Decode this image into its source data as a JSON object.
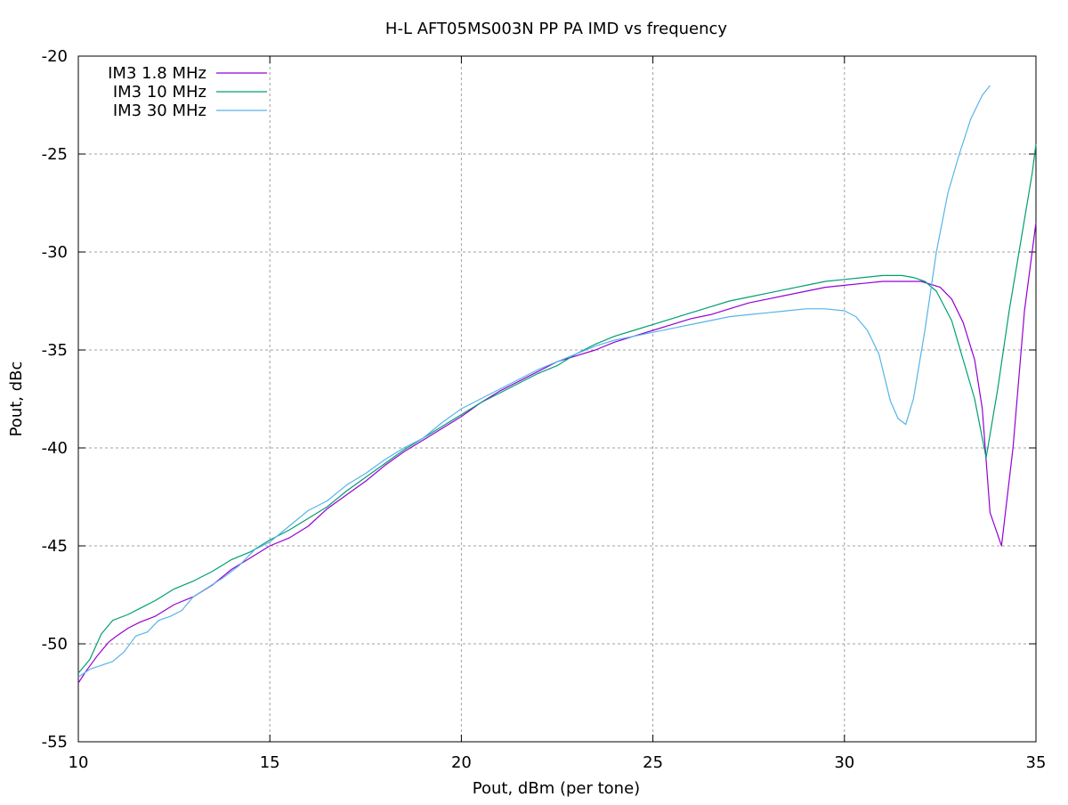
{
  "chart_data": {
    "type": "line",
    "title": "H-L AFT05MS003N PP PA IMD vs frequency",
    "xlabel": "Pout, dBm (per tone)",
    "ylabel": "Pout, dBc",
    "xlim": [
      10,
      35
    ],
    "ylim": [
      -55,
      -20
    ],
    "x_ticks": [
      10,
      15,
      20,
      25,
      30,
      35
    ],
    "y_ticks": [
      -55,
      -50,
      -45,
      -40,
      -35,
      -30,
      -25,
      -20
    ],
    "x_tick_labels": [
      "10",
      "15",
      "20",
      "25",
      "30",
      "35"
    ],
    "y_tick_labels": [
      "-55",
      "-50",
      "-45",
      "-40",
      "-35",
      "-30",
      "-25",
      "-20"
    ],
    "grid": true,
    "legend_position": "top-left",
    "series": [
      {
        "name": "IM3 1.8 MHz",
        "color": "#9400d3",
        "x": [
          10.0,
          10.2,
          10.5,
          10.8,
          11.0,
          11.3,
          11.6,
          12.0,
          12.5,
          13.0,
          13.5,
          14.0,
          14.5,
          15.0,
          15.5,
          16.0,
          16.5,
          17.0,
          17.5,
          18.0,
          18.5,
          19.0,
          19.5,
          20.0,
          20.5,
          21.0,
          21.5,
          22.0,
          22.5,
          23.0,
          23.5,
          24.0,
          24.5,
          25.0,
          25.5,
          26.0,
          26.5,
          27.0,
          27.5,
          28.0,
          28.5,
          29.0,
          29.5,
          30.0,
          30.5,
          31.0,
          31.5,
          32.0,
          32.5,
          32.8,
          33.1,
          33.4,
          33.6,
          33.8,
          34.1,
          34.4,
          34.7,
          35.0
        ],
        "values": [
          -52.0,
          -51.4,
          -50.6,
          -49.9,
          -49.6,
          -49.2,
          -48.9,
          -48.6,
          -48.0,
          -47.6,
          -47.0,
          -46.2,
          -45.6,
          -45.0,
          -44.6,
          -44.0,
          -43.1,
          -42.4,
          -41.7,
          -40.9,
          -40.2,
          -39.6,
          -39.0,
          -38.4,
          -37.7,
          -37.1,
          -36.6,
          -36.1,
          -35.6,
          -35.3,
          -35.0,
          -34.6,
          -34.3,
          -34.0,
          -33.7,
          -33.4,
          -33.2,
          -32.9,
          -32.6,
          -32.4,
          -32.2,
          -32.0,
          -31.8,
          -31.7,
          -31.6,
          -31.5,
          -31.5,
          -31.5,
          -31.8,
          -32.4,
          -33.6,
          -35.5,
          -38.0,
          -43.3,
          -45.0,
          -40.0,
          -33.0,
          -28.5
        ]
      },
      {
        "name": "IM3 10 MHz",
        "color": "#009e73",
        "x": [
          10.0,
          10.3,
          10.6,
          10.9,
          11.3,
          11.7,
          12.0,
          12.5,
          13.0,
          13.5,
          14.0,
          14.5,
          15.0,
          15.5,
          16.0,
          16.5,
          17.0,
          17.5,
          18.0,
          18.5,
          19.0,
          19.5,
          20.0,
          20.5,
          21.0,
          21.5,
          22.0,
          22.5,
          23.0,
          23.5,
          24.0,
          24.5,
          25.0,
          25.5,
          26.0,
          26.5,
          27.0,
          27.5,
          28.0,
          28.5,
          29.0,
          29.5,
          30.0,
          30.5,
          31.0,
          31.5,
          31.8,
          32.1,
          32.4,
          32.8,
          33.1,
          33.4,
          33.7,
          34.0,
          34.3,
          34.6,
          34.9,
          35.0
        ],
        "values": [
          -51.5,
          -50.8,
          -49.5,
          -48.8,
          -48.5,
          -48.1,
          -47.8,
          -47.2,
          -46.8,
          -46.3,
          -45.7,
          -45.3,
          -44.7,
          -44.2,
          -43.6,
          -43.0,
          -42.2,
          -41.5,
          -40.8,
          -40.1,
          -39.5,
          -38.9,
          -38.3,
          -37.7,
          -37.2,
          -36.7,
          -36.2,
          -35.8,
          -35.2,
          -34.7,
          -34.3,
          -34.0,
          -33.7,
          -33.4,
          -33.1,
          -32.8,
          -32.5,
          -32.3,
          -32.1,
          -31.9,
          -31.7,
          -31.5,
          -31.4,
          -31.3,
          -31.2,
          -31.2,
          -31.3,
          -31.5,
          -32.0,
          -33.5,
          -35.5,
          -37.5,
          -40.5,
          -37.0,
          -33.0,
          -29.5,
          -26.0,
          -24.5
        ]
      },
      {
        "name": "IM3 30 MHz",
        "color": "#56b4e9",
        "x": [
          10.0,
          10.3,
          10.6,
          10.9,
          11.2,
          11.5,
          11.8,
          12.1,
          12.4,
          12.7,
          13.0,
          13.4,
          13.8,
          14.2,
          14.6,
          15.0,
          15.5,
          16.0,
          16.5,
          17.0,
          17.5,
          18.0,
          18.5,
          19.0,
          19.5,
          20.0,
          20.5,
          21.0,
          21.5,
          22.0,
          22.5,
          23.0,
          23.5,
          24.0,
          24.5,
          25.0,
          25.5,
          26.0,
          26.5,
          27.0,
          27.5,
          28.0,
          28.5,
          29.0,
          29.5,
          30.0,
          30.3,
          30.6,
          30.9,
          31.2,
          31.4,
          31.6,
          31.8,
          32.1,
          32.4,
          32.7,
          33.0,
          33.3,
          33.6,
          33.8
        ],
        "values": [
          -51.7,
          -51.3,
          -51.1,
          -50.9,
          -50.4,
          -49.6,
          -49.4,
          -48.8,
          -48.6,
          -48.3,
          -47.6,
          -47.1,
          -46.6,
          -46.0,
          -45.2,
          -44.8,
          -44.0,
          -43.2,
          -42.7,
          -41.9,
          -41.3,
          -40.6,
          -40.0,
          -39.5,
          -38.7,
          -38.0,
          -37.5,
          -37.0,
          -36.5,
          -36.0,
          -35.6,
          -35.2,
          -34.8,
          -34.5,
          -34.3,
          -34.1,
          -33.9,
          -33.7,
          -33.5,
          -33.3,
          -33.2,
          -33.1,
          -33.0,
          -32.9,
          -32.9,
          -33.0,
          -33.3,
          -34.0,
          -35.2,
          -37.6,
          -38.5,
          -38.8,
          -37.5,
          -34.0,
          -30.0,
          -27.0,
          -25.0,
          -23.2,
          -22.0,
          -21.5
        ]
      }
    ]
  }
}
